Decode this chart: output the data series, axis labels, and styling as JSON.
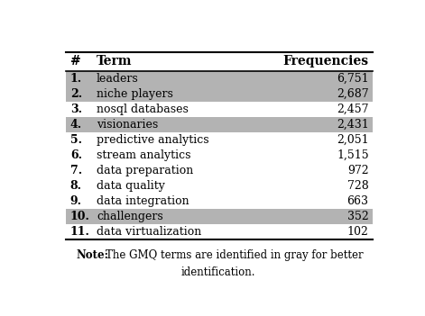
{
  "headers": [
    "#",
    "Term",
    "Frequencies"
  ],
  "rows": [
    {
      "num": "1.",
      "term": "leaders",
      "freq": "6,751",
      "gray": true
    },
    {
      "num": "2.",
      "term": "niche players",
      "freq": "2,687",
      "gray": true
    },
    {
      "num": "3.",
      "term": "nosql databases",
      "freq": "2,457",
      "gray": false
    },
    {
      "num": "4.",
      "term": "visionaries",
      "freq": "2,431",
      "gray": true
    },
    {
      "num": "5.",
      "term": "predictive analytics",
      "freq": "2,051",
      "gray": false
    },
    {
      "num": "6.",
      "term": "stream analytics",
      "freq": "1,515",
      "gray": false
    },
    {
      "num": "7.",
      "term": "data preparation",
      "freq": "972",
      "gray": false
    },
    {
      "num": "8.",
      "term": "data quality",
      "freq": "728",
      "gray": false
    },
    {
      "num": "9.",
      "term": "data integration",
      "freq": "663",
      "gray": false
    },
    {
      "num": "10.",
      "term": "challengers",
      "freq": "352",
      "gray": true
    },
    {
      "num": "11.",
      "term": "data virtualization",
      "freq": "102",
      "gray": false
    }
  ],
  "note_bold": "Note:",
  "note_rest": "  The GMQ terms are identified in gray for better",
  "note_line2": "identification.",
  "gray_color": "#b3b3b3",
  "white_color": "#ffffff",
  "font_size": 9.0,
  "header_font_size": 10.0,
  "note_font_size": 8.5
}
